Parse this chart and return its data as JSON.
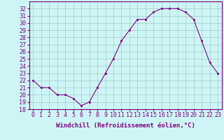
{
  "x": [
    0,
    1,
    2,
    3,
    4,
    5,
    6,
    7,
    8,
    9,
    10,
    11,
    12,
    13,
    14,
    15,
    16,
    17,
    18,
    19,
    20,
    21,
    22,
    23
  ],
  "y": [
    22,
    21,
    21,
    20,
    20,
    19.5,
    18.5,
    19,
    21,
    23,
    25,
    27.5,
    29,
    30.5,
    30.5,
    31.5,
    32,
    32,
    32,
    31.5,
    30.5,
    27.5,
    24.5,
    23
  ],
  "xlabel": "Windchill (Refroidissement éolien,°C)",
  "ylim": [
    18,
    33
  ],
  "xlim": [
    -0.5,
    23.5
  ],
  "yticks": [
    18,
    19,
    20,
    21,
    22,
    23,
    24,
    25,
    26,
    27,
    28,
    29,
    30,
    31,
    32
  ],
  "xticks": [
    0,
    1,
    2,
    3,
    4,
    5,
    6,
    7,
    8,
    9,
    10,
    11,
    12,
    13,
    14,
    15,
    16,
    17,
    18,
    19,
    20,
    21,
    22,
    23
  ],
  "line_color": "#800080",
  "marker_color": "#800080",
  "bg_color": "#cef5f5",
  "grid_color": "#a0cccc",
  "axis_color": "#800080",
  "tick_color": "#800080",
  "label_color": "#800080",
  "font_size": 6.0,
  "xlabel_fontsize": 6.5
}
